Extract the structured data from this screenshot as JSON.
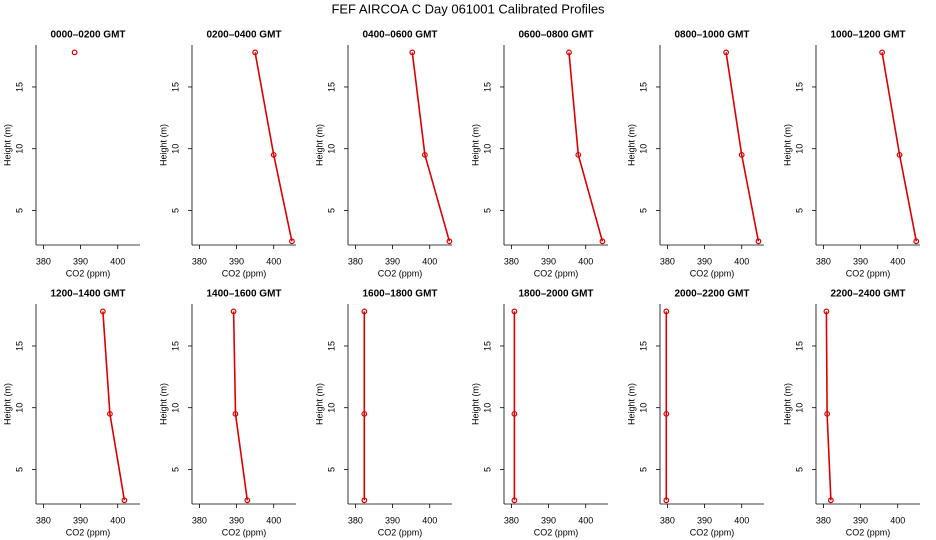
{
  "title": "FEF AIRCOA C  Day 061001  Calibrated Profiles",
  "chart_data": [
    {
      "type": "line",
      "title": "0000–0200 GMT",
      "xlabel": "CO2 (ppm)",
      "ylabel": "Height (m)",
      "x": [
        388.4
      ],
      "values": [
        17.8
      ],
      "color": "#dd0000",
      "xlim": [
        378,
        406
      ],
      "ylim": [
        2.2,
        18.4
      ],
      "xticks": [
        380,
        390,
        400
      ],
      "yticks": [
        5,
        10,
        15
      ]
    },
    {
      "type": "line",
      "title": "0200–0400 GMT",
      "xlabel": "CO2 (ppm)",
      "ylabel": "Height (m)",
      "x": [
        395,
        400,
        404.9
      ],
      "values": [
        17.8,
        9.5,
        2.5
      ],
      "color": "#dd0000",
      "xlim": [
        378,
        406
      ],
      "ylim": [
        2.2,
        18.4
      ],
      "xticks": [
        380,
        390,
        400
      ],
      "yticks": [
        5,
        10,
        15
      ]
    },
    {
      "type": "line",
      "title": "0400–0600 GMT",
      "xlabel": "CO2 (ppm)",
      "ylabel": "Height (m)",
      "x": [
        395.3,
        398.7,
        405.3
      ],
      "values": [
        17.8,
        9.5,
        2.5
      ],
      "color": "#dd0000",
      "xlim": [
        378,
        406
      ],
      "ylim": [
        2.2,
        18.4
      ],
      "xticks": [
        380,
        390,
        400
      ],
      "yticks": [
        5,
        10,
        15
      ]
    },
    {
      "type": "line",
      "title": "0600–0800 GMT",
      "xlabel": "CO2 (ppm)",
      "ylabel": "Height (m)",
      "x": [
        395.5,
        398,
        404.5
      ],
      "values": [
        17.8,
        9.5,
        2.5
      ],
      "color": "#dd0000",
      "xlim": [
        378,
        406
      ],
      "ylim": [
        2.2,
        18.4
      ],
      "xticks": [
        380,
        390,
        400
      ],
      "yticks": [
        5,
        10,
        15
      ]
    },
    {
      "type": "line",
      "title": "0800–1000 GMT",
      "xlabel": "CO2 (ppm)",
      "ylabel": "Height (m)",
      "x": [
        395.8,
        400,
        404.5
      ],
      "values": [
        17.8,
        9.5,
        2.5
      ],
      "color": "#dd0000",
      "xlim": [
        378,
        406
      ],
      "ylim": [
        2.2,
        18.4
      ],
      "xticks": [
        380,
        390,
        400
      ],
      "yticks": [
        5,
        10,
        15
      ]
    },
    {
      "type": "line",
      "title": "1000–1200 GMT",
      "xlabel": "CO2 (ppm)",
      "ylabel": "Height (m)",
      "x": [
        395.8,
        400.5,
        405
      ],
      "values": [
        17.8,
        9.5,
        2.5
      ],
      "color": "#dd0000",
      "xlim": [
        378,
        406
      ],
      "ylim": [
        2.2,
        18.4
      ],
      "xticks": [
        380,
        390,
        400
      ],
      "yticks": [
        5,
        10,
        15
      ]
    },
    {
      "type": "line",
      "title": "1200–1400 GMT",
      "xlabel": "CO2 (ppm)",
      "ylabel": "Height (m)",
      "x": [
        396,
        397.9,
        401.8
      ],
      "values": [
        17.8,
        9.5,
        2.5
      ],
      "color": "#dd0000",
      "xlim": [
        378,
        406
      ],
      "ylim": [
        2.2,
        18.4
      ],
      "xticks": [
        380,
        390,
        400
      ],
      "yticks": [
        5,
        10,
        15
      ]
    },
    {
      "type": "line",
      "title": "1400–1600 GMT",
      "xlabel": "CO2 (ppm)",
      "ylabel": "Height (m)",
      "x": [
        389.2,
        389.7,
        392.9
      ],
      "values": [
        17.8,
        9.5,
        2.5
      ],
      "color": "#dd0000",
      "xlim": [
        378,
        406
      ],
      "ylim": [
        2.2,
        18.4
      ],
      "xticks": [
        380,
        390,
        400
      ],
      "yticks": [
        5,
        10,
        15
      ]
    },
    {
      "type": "line",
      "title": "1600–1800 GMT",
      "xlabel": "CO2 (ppm)",
      "ylabel": "Height (m)",
      "x": [
        382.4,
        382.4,
        382.4
      ],
      "values": [
        17.8,
        9.5,
        2.5
      ],
      "color": "#dd0000",
      "xlim": [
        378,
        406
      ],
      "ylim": [
        2.2,
        18.4
      ],
      "xticks": [
        380,
        390,
        400
      ],
      "yticks": [
        5,
        10,
        15
      ]
    },
    {
      "type": "line",
      "title": "1800–2000 GMT",
      "xlabel": "CO2 (ppm)",
      "ylabel": "Height (m)",
      "x": [
        380.8,
        380.8,
        380.8
      ],
      "values": [
        17.8,
        9.5,
        2.5
      ],
      "color": "#dd0000",
      "xlim": [
        378,
        406
      ],
      "ylim": [
        2.2,
        18.4
      ],
      "xticks": [
        380,
        390,
        400
      ],
      "yticks": [
        5,
        10,
        15
      ]
    },
    {
      "type": "line",
      "title": "2000–2200 GMT",
      "xlabel": "CO2 (ppm)",
      "ylabel": "Height (m)",
      "x": [
        379.7,
        379.7,
        379.7
      ],
      "values": [
        17.8,
        9.5,
        2.5
      ],
      "color": "#dd0000",
      "xlim": [
        378,
        406
      ],
      "ylim": [
        2.2,
        18.4
      ],
      "xticks": [
        380,
        390,
        400
      ],
      "yticks": [
        5,
        10,
        15
      ]
    },
    {
      "type": "line",
      "title": "2200–2400 GMT",
      "xlabel": "CO2 (ppm)",
      "ylabel": "Height (m)",
      "x": [
        380.8,
        381,
        382
      ],
      "values": [
        17.8,
        9.5,
        2.5
      ],
      "color": "#dd0000",
      "xlim": [
        378,
        406
      ],
      "ylim": [
        2.2,
        18.4
      ],
      "xticks": [
        380,
        390,
        400
      ],
      "yticks": [
        5,
        10,
        15
      ]
    }
  ]
}
